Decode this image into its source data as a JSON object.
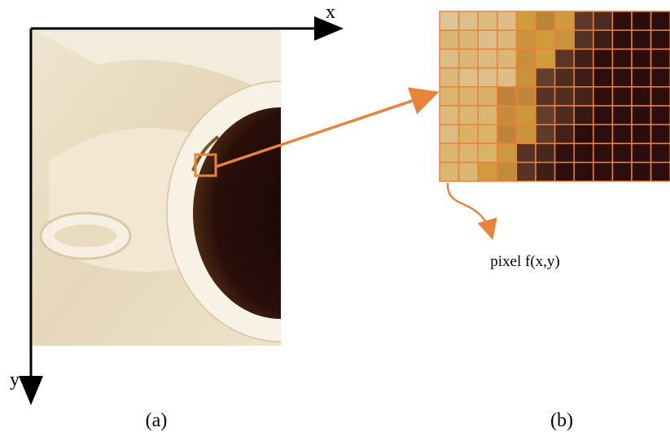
{
  "axes": {
    "x": "x",
    "y": "y"
  },
  "panels": {
    "a": "(a)",
    "b": "(b)"
  },
  "annotation": "pixel f(x,y)"
}
